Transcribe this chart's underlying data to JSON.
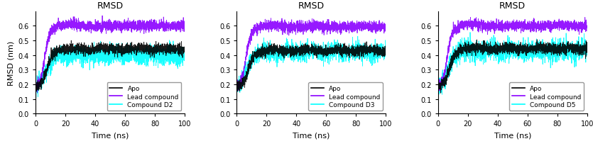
{
  "title": "RMSD",
  "xlabel": "Time (ns)",
  "ylabel": "RMSD (nm)",
  "xlim": [
    0,
    100
  ],
  "ylim": [
    0,
    0.7
  ],
  "yticks": [
    0,
    0.1,
    0.2,
    0.3,
    0.4,
    0.5,
    0.6
  ],
  "xticks": [
    0,
    20,
    40,
    60,
    80,
    100
  ],
  "apo_color": "#000000",
  "lead_color": "#8B00FF",
  "compound_colors": [
    "#00FFFF",
    "#00FFFF",
    "#00FFFF"
  ],
  "compound_labels": [
    "Compound D2",
    "Compound D3",
    "Compound D5"
  ],
  "legend_labels": [
    "Apo",
    "Lead compound"
  ],
  "linewidth": 0.6,
  "seed": 42,
  "n_points": 2000
}
